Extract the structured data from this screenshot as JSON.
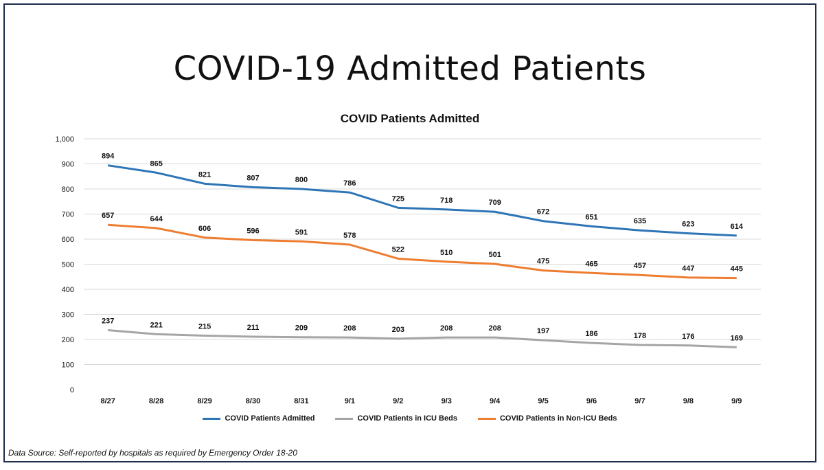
{
  "slide": {
    "title": "COVID-19 Admitted Patients",
    "source": "Data Source: Self-reported by hospitals as required by Emergency Order 18-20"
  },
  "colors": {
    "border": "#1f2b4d",
    "admitted": "#2e75b6",
    "icu": "#a5a5a5",
    "non_icu": "#ed7d31",
    "grid": "#d9d9d9"
  },
  "chart_data": {
    "type": "line",
    "title": "COVID Patients Admitted",
    "xlabel": "",
    "ylabel": "",
    "categories": [
      "8/27",
      "8/28",
      "8/29",
      "8/30",
      "8/31",
      "9/1",
      "9/2",
      "9/3",
      "9/4",
      "9/5",
      "9/6",
      "9/7",
      "9/8",
      "9/9"
    ],
    "ylim": [
      0,
      1000
    ],
    "yticks": [
      0,
      100,
      200,
      300,
      400,
      500,
      600,
      700,
      800,
      900,
      1000
    ],
    "ytick_labels": [
      "0",
      "100",
      "200",
      "300",
      "400",
      "500",
      "600",
      "700",
      "800",
      "900",
      "1,000"
    ],
    "grid": true,
    "legend_position": "bottom",
    "series": [
      {
        "name": "COVID Patients Admitted",
        "color": "#2e75b6",
        "values": [
          894,
          865,
          821,
          807,
          800,
          786,
          725,
          718,
          709,
          672,
          651,
          635,
          623,
          614
        ]
      },
      {
        "name": "COVID Patients in ICU Beds",
        "color": "#a5a5a5",
        "values": [
          237,
          221,
          215,
          211,
          209,
          208,
          203,
          208,
          208,
          197,
          186,
          178,
          176,
          169
        ]
      },
      {
        "name": "COVID Patients in Non-ICU Beds",
        "color": "#ed7d31",
        "values": [
          657,
          644,
          606,
          596,
          591,
          578,
          522,
          510,
          501,
          475,
          465,
          457,
          447,
          445
        ]
      }
    ]
  }
}
